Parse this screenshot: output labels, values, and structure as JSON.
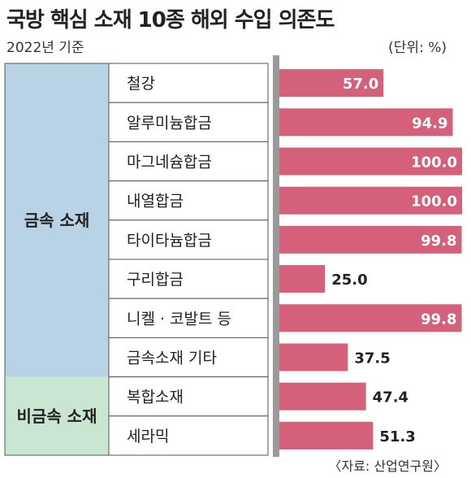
{
  "title": "국방 핵심 소재 10종 해외 수입 의존도",
  "subtitle": "2022년 기준",
  "unit": "(단위: %)",
  "source": "〈자료: 산업연구원〉",
  "colors": {
    "bar": "#d4607a",
    "metal_group": "#b8d3e6",
    "nonmetal_group": "#c9e6d3",
    "label_on_bar": "#ffffff",
    "label_off_bar": "#222222"
  },
  "chart_data": {
    "type": "bar",
    "orientation": "horizontal",
    "xlim": [
      0,
      100
    ],
    "categories": [
      "철강",
      "알루미늄합금",
      "마그네슘합금",
      "내열합금",
      "타이타늄합금",
      "구리합금",
      "니켈 · 코발트 등",
      "금속소재 기타",
      "복합소재",
      "세라믹"
    ],
    "values": [
      57.0,
      94.9,
      100.0,
      100.0,
      99.8,
      25.0,
      99.8,
      37.5,
      47.4,
      51.3
    ],
    "value_labels": [
      "57.0",
      "94.9",
      "100.0",
      "100.0",
      "99.8",
      "25.0",
      "99.8",
      "37.5",
      "47.4",
      "51.3"
    ],
    "groups": [
      {
        "name": "금속 소재",
        "count": 8
      },
      {
        "name": "비금속 소재",
        "count": 2
      }
    ]
  }
}
